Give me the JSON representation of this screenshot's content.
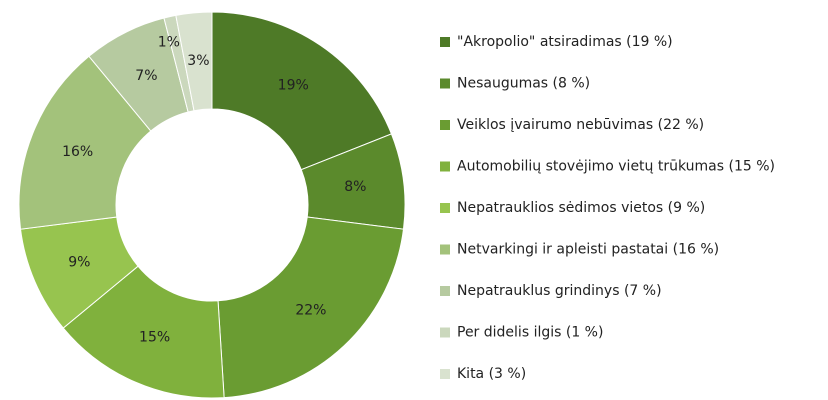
{
  "chart_data": {
    "type": "donut",
    "categories": [
      "\"Akropolio\" atsiradimas (19 %)",
      "Nesaugumas (8 %)",
      "Veiklos įvairumo nebūvimas (22 %)",
      "Automobilių stovėjimo vietų trūkumas (15 %)",
      "Nepatrauklios sėdimos vietos (9 %)",
      "Netvarkingi ir apleisti pastatai (16 %)",
      "Nepatrauklus grindinys (7 %)",
      "Per didelis ilgis (1 %)",
      "Kita (3 %)"
    ],
    "values": [
      19,
      8,
      22,
      15,
      9,
      16,
      7,
      1,
      3
    ],
    "value_labels": [
      "19%",
      "8%",
      "22%",
      "15%",
      "9%",
      "16%",
      "7%",
      "1%",
      "3%"
    ],
    "colors": [
      "#4e7a27",
      "#5b8a2c",
      "#6a9c32",
      "#80b13d",
      "#97c44f",
      "#a3c27b",
      "#b6caa0",
      "#cbd8bd",
      "#d9e2cf"
    ],
    "legend": "right"
  }
}
